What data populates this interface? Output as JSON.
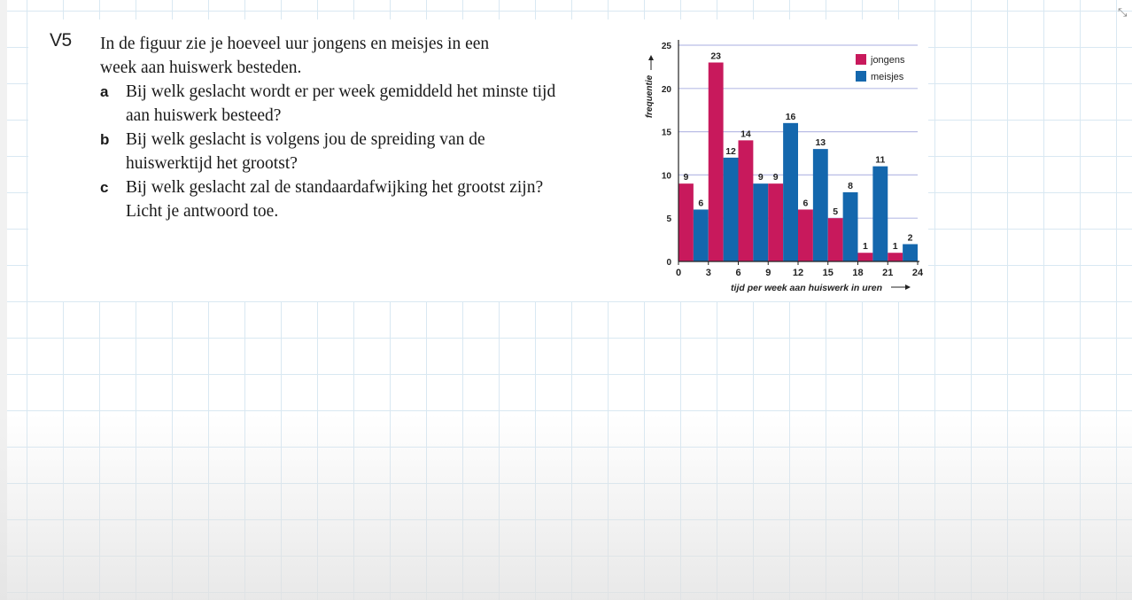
{
  "exercise": {
    "number": "V5",
    "intro": "In de figuur zie je hoeveel uur jongens en meisjes in een week aan huiswerk besteden.",
    "questions": [
      {
        "letter": "a",
        "text": "Bij welk geslacht wordt er per week gemiddeld het minste tijd aan huiswerk besteed?"
      },
      {
        "letter": "b",
        "text": "Bij welk geslacht is volgens jou de spreiding van de huiswerktijd het grootst?"
      },
      {
        "letter": "c",
        "text": "Bij welk geslacht zal de standaardafwijking het grootst zijn? Licht je antwoord toe."
      }
    ]
  },
  "chart_data": {
    "type": "bar",
    "x_edges": [
      0,
      3,
      6,
      9,
      12,
      15,
      18,
      21,
      24
    ],
    "categories": [
      "0-3",
      "3-6",
      "6-9",
      "9-12",
      "12-15",
      "15-18",
      "18-21",
      "21-24"
    ],
    "series": [
      {
        "name": "jongens",
        "color": "#c8195c",
        "values": [
          9,
          23,
          14,
          9,
          6,
          5,
          1,
          1
        ]
      },
      {
        "name": "meisjes",
        "color": "#1467ad",
        "values": [
          6,
          12,
          9,
          16,
          13,
          8,
          11,
          2
        ]
      }
    ],
    "ylabel": "frequentie",
    "xlabel": "tijd per week aan huiswerk in uren",
    "y_ticks": [
      0,
      5,
      10,
      15,
      20,
      25
    ],
    "ylim": [
      0,
      25
    ],
    "xlim": [
      0,
      24
    ],
    "grid": true,
    "legend": "top-right"
  },
  "colors": {
    "jongens": "#c8195c",
    "meisjes": "#1467ad",
    "grid": "#b9bde6"
  },
  "icons": {
    "resize": "resize-icon"
  }
}
